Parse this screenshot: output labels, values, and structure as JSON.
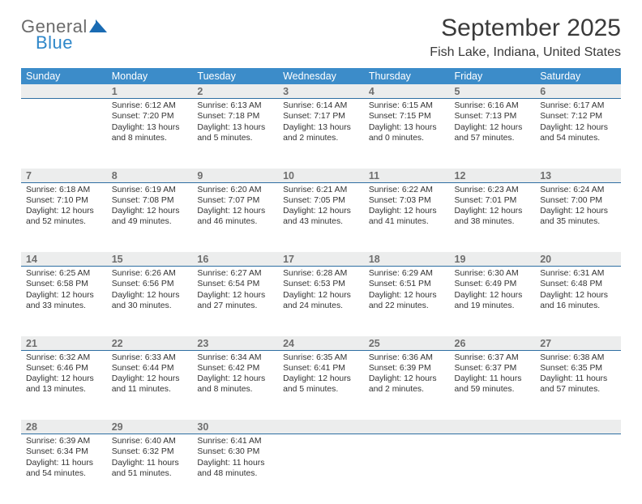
{
  "brand": {
    "line1": "General",
    "line2": "Blue"
  },
  "title": "September 2025",
  "location": "Fish Lake, Indiana, United States",
  "colors": {
    "header_bg": "#3c8cc9",
    "header_text": "#ffffff",
    "daynum_bg": "#eceded",
    "daynum_text": "#6e6e6e",
    "row_divider": "#2f6fa3",
    "body_text": "#333333",
    "logo_gray": "#6b6b6b",
    "logo_blue": "#2e87c9",
    "logo_mark": "#1a6bb3"
  },
  "typography": {
    "title_fontsize": 30,
    "subtitle_fontsize": 16,
    "header_fontsize": 12.5,
    "daynum_fontsize": 12.5,
    "body_fontsize": 10.4
  },
  "weekdays": [
    "Sunday",
    "Monday",
    "Tuesday",
    "Wednesday",
    "Thursday",
    "Friday",
    "Saturday"
  ],
  "first_weekday_index": 1,
  "days": [
    {
      "n": 1,
      "sunrise": "6:12 AM",
      "sunset": "7:20 PM",
      "daylight": "13 hours and 8 minutes."
    },
    {
      "n": 2,
      "sunrise": "6:13 AM",
      "sunset": "7:18 PM",
      "daylight": "13 hours and 5 minutes."
    },
    {
      "n": 3,
      "sunrise": "6:14 AM",
      "sunset": "7:17 PM",
      "daylight": "13 hours and 2 minutes."
    },
    {
      "n": 4,
      "sunrise": "6:15 AM",
      "sunset": "7:15 PM",
      "daylight": "13 hours and 0 minutes."
    },
    {
      "n": 5,
      "sunrise": "6:16 AM",
      "sunset": "7:13 PM",
      "daylight": "12 hours and 57 minutes."
    },
    {
      "n": 6,
      "sunrise": "6:17 AM",
      "sunset": "7:12 PM",
      "daylight": "12 hours and 54 minutes."
    },
    {
      "n": 7,
      "sunrise": "6:18 AM",
      "sunset": "7:10 PM",
      "daylight": "12 hours and 52 minutes."
    },
    {
      "n": 8,
      "sunrise": "6:19 AM",
      "sunset": "7:08 PM",
      "daylight": "12 hours and 49 minutes."
    },
    {
      "n": 9,
      "sunrise": "6:20 AM",
      "sunset": "7:07 PM",
      "daylight": "12 hours and 46 minutes."
    },
    {
      "n": 10,
      "sunrise": "6:21 AM",
      "sunset": "7:05 PM",
      "daylight": "12 hours and 43 minutes."
    },
    {
      "n": 11,
      "sunrise": "6:22 AM",
      "sunset": "7:03 PM",
      "daylight": "12 hours and 41 minutes."
    },
    {
      "n": 12,
      "sunrise": "6:23 AM",
      "sunset": "7:01 PM",
      "daylight": "12 hours and 38 minutes."
    },
    {
      "n": 13,
      "sunrise": "6:24 AM",
      "sunset": "7:00 PM",
      "daylight": "12 hours and 35 minutes."
    },
    {
      "n": 14,
      "sunrise": "6:25 AM",
      "sunset": "6:58 PM",
      "daylight": "12 hours and 33 minutes."
    },
    {
      "n": 15,
      "sunrise": "6:26 AM",
      "sunset": "6:56 PM",
      "daylight": "12 hours and 30 minutes."
    },
    {
      "n": 16,
      "sunrise": "6:27 AM",
      "sunset": "6:54 PM",
      "daylight": "12 hours and 27 minutes."
    },
    {
      "n": 17,
      "sunrise": "6:28 AM",
      "sunset": "6:53 PM",
      "daylight": "12 hours and 24 minutes."
    },
    {
      "n": 18,
      "sunrise": "6:29 AM",
      "sunset": "6:51 PM",
      "daylight": "12 hours and 22 minutes."
    },
    {
      "n": 19,
      "sunrise": "6:30 AM",
      "sunset": "6:49 PM",
      "daylight": "12 hours and 19 minutes."
    },
    {
      "n": 20,
      "sunrise": "6:31 AM",
      "sunset": "6:48 PM",
      "daylight": "12 hours and 16 minutes."
    },
    {
      "n": 21,
      "sunrise": "6:32 AM",
      "sunset": "6:46 PM",
      "daylight": "12 hours and 13 minutes."
    },
    {
      "n": 22,
      "sunrise": "6:33 AM",
      "sunset": "6:44 PM",
      "daylight": "12 hours and 11 minutes."
    },
    {
      "n": 23,
      "sunrise": "6:34 AM",
      "sunset": "6:42 PM",
      "daylight": "12 hours and 8 minutes."
    },
    {
      "n": 24,
      "sunrise": "6:35 AM",
      "sunset": "6:41 PM",
      "daylight": "12 hours and 5 minutes."
    },
    {
      "n": 25,
      "sunrise": "6:36 AM",
      "sunset": "6:39 PM",
      "daylight": "12 hours and 2 minutes."
    },
    {
      "n": 26,
      "sunrise": "6:37 AM",
      "sunset": "6:37 PM",
      "daylight": "11 hours and 59 minutes."
    },
    {
      "n": 27,
      "sunrise": "6:38 AM",
      "sunset": "6:35 PM",
      "daylight": "11 hours and 57 minutes."
    },
    {
      "n": 28,
      "sunrise": "6:39 AM",
      "sunset": "6:34 PM",
      "daylight": "11 hours and 54 minutes."
    },
    {
      "n": 29,
      "sunrise": "6:40 AM",
      "sunset": "6:32 PM",
      "daylight": "11 hours and 51 minutes."
    },
    {
      "n": 30,
      "sunrise": "6:41 AM",
      "sunset": "6:30 PM",
      "daylight": "11 hours and 48 minutes."
    }
  ],
  "labels": {
    "sunrise": "Sunrise:",
    "sunset": "Sunset:",
    "daylight": "Daylight:"
  }
}
